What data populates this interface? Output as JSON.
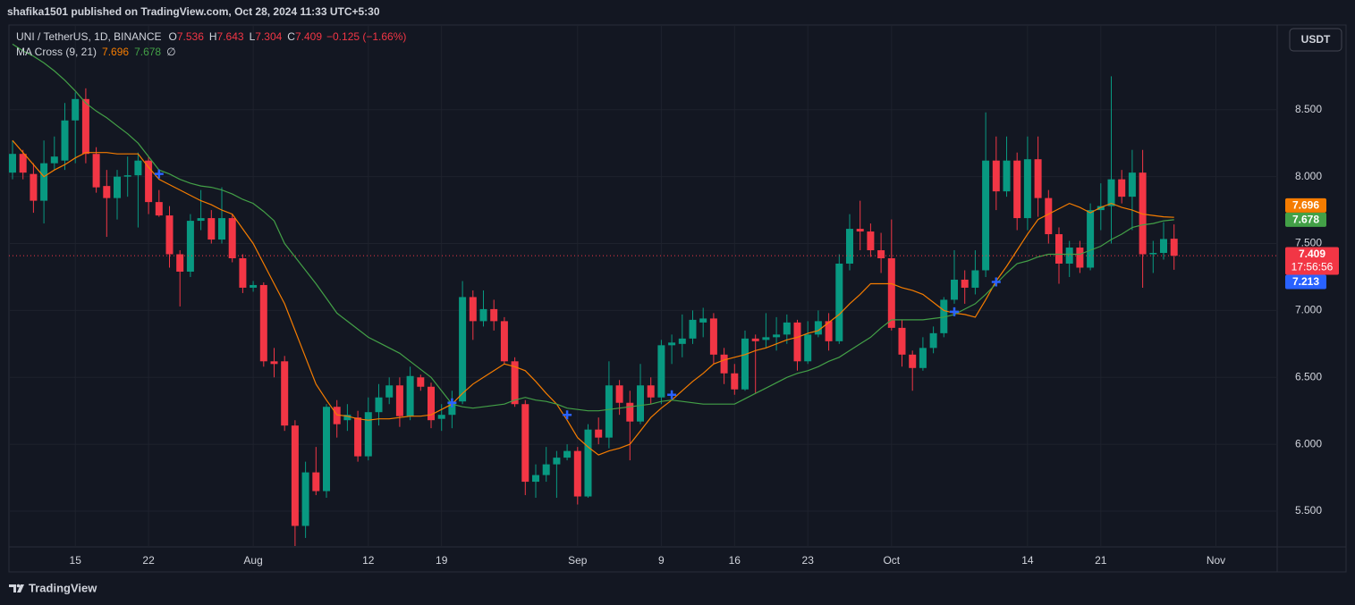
{
  "header": {
    "publisher": "shafika1501 published on TradingView.com, Oct 28, 2024 11:33 UTC+5:30",
    "currency": "USDT",
    "brand": "TradingView"
  },
  "chart_data": {
    "type": "candlestick",
    "title": "UNI / TetherUS, 1D, BINANCE",
    "ohlc_labels": [
      "O",
      "H",
      "L",
      "C"
    ],
    "change": "−0.125 (−1.66%)",
    "countdown": "17:56:56",
    "categories": [
      "Jul 9",
      "Jul 10",
      "Jul 11",
      "Jul 12",
      "Jul 13",
      "Jul 14",
      "Jul 15",
      "Jul 16",
      "Jul 17",
      "Jul 18",
      "Jul 19",
      "Jul 20",
      "Jul 21",
      "Jul 22",
      "Jul 23",
      "Jul 24",
      "Jul 25",
      "Jul 26",
      "Jul 27",
      "Jul 28",
      "Jul 29",
      "Jul 30",
      "Jul 31",
      "Aug 1",
      "Aug 2",
      "Aug 3",
      "Aug 4",
      "Aug 5",
      "Aug 6",
      "Aug 7",
      "Aug 8",
      "Aug 9",
      "Aug 10",
      "Aug 11",
      "Aug 12",
      "Aug 13",
      "Aug 14",
      "Aug 15",
      "Aug 16",
      "Aug 17",
      "Aug 18",
      "Aug 19",
      "Aug 20",
      "Aug 21",
      "Aug 22",
      "Aug 23",
      "Aug 24",
      "Aug 25",
      "Aug 26",
      "Aug 27",
      "Aug 28",
      "Aug 29",
      "Aug 30",
      "Aug 31",
      "Sep 1",
      "Sep 2",
      "Sep 3",
      "Sep 4",
      "Sep 5",
      "Sep 6",
      "Sep 7",
      "Sep 8",
      "Sep 9",
      "Sep 10",
      "Sep 11",
      "Sep 12",
      "Sep 13",
      "Sep 14",
      "Sep 15",
      "Sep 16",
      "Sep 17",
      "Sep 18",
      "Sep 19",
      "Sep 20",
      "Sep 21",
      "Sep 22",
      "Sep 23",
      "Sep 24",
      "Sep 25",
      "Sep 26",
      "Sep 27",
      "Sep 28",
      "Sep 29",
      "Sep 30",
      "Oct 1",
      "Oct 2",
      "Oct 3",
      "Oct 4",
      "Oct 5",
      "Oct 6",
      "Oct 7",
      "Oct 8",
      "Oct 9",
      "Oct 10",
      "Oct 11",
      "Oct 12",
      "Oct 13",
      "Oct 14",
      "Oct 15",
      "Oct 16",
      "Oct 17",
      "Oct 18",
      "Oct 19",
      "Oct 20",
      "Oct 21",
      "Oct 22",
      "Oct 23",
      "Oct 24",
      "Oct 25",
      "Oct 26",
      "Oct 27",
      "Oct 28"
    ],
    "open": [
      8.03,
      8.17,
      8.02,
      7.82,
      8.1,
      8.12,
      8.42,
      8.58,
      8.17,
      7.93,
      7.84,
      8.0,
      8.01,
      8.12,
      7.81,
      7.71,
      7.42,
      7.29,
      7.67,
      7.69,
      7.53,
      7.69,
      7.39,
      7.17,
      7.19,
      6.62,
      6.62,
      6.14,
      5.39,
      5.79,
      5.65,
      6.28,
      6.18,
      6.2,
      5.91,
      6.24,
      6.35,
      6.44,
      6.21,
      6.5,
      6.43,
      6.19,
      6.22,
      6.32,
      7.1,
      6.92,
      7.01,
      6.92,
      6.62,
      6.3,
      5.72,
      5.77,
      5.85,
      5.9,
      5.95,
      5.61,
      6.11,
      6.05,
      6.44,
      6.31,
      6.17,
      6.44,
      6.35,
      6.74,
      6.75,
      6.79,
      6.91,
      6.94,
      6.67,
      6.53,
      6.41,
      6.79,
      6.78,
      6.8,
      6.82,
      6.91,
      6.62,
      6.82,
      6.92,
      6.77,
      7.35,
      7.61,
      7.59,
      7.45,
      7.39,
      6.87,
      6.67,
      6.57,
      6.72,
      6.83,
      7.08,
      7.23,
      7.17,
      7.3,
      8.12,
      7.89,
      8.12,
      7.69,
      8.13,
      7.84,
      7.57,
      7.35,
      7.47,
      7.32,
      7.75,
      7.78,
      7.98,
      7.85,
      8.03,
      7.42,
      7.43,
      7.536
    ],
    "high": [
      8.27,
      8.2,
      8.1,
      8.27,
      8.3,
      8.55,
      8.63,
      8.66,
      8.22,
      8.05,
      8.05,
      8.15,
      8.18,
      8.15,
      7.9,
      7.78,
      7.45,
      7.72,
      7.9,
      7.75,
      7.92,
      7.72,
      7.42,
      7.22,
      7.21,
      6.72,
      6.66,
      6.18,
      5.87,
      5.98,
      6.3,
      6.33,
      6.3,
      6.25,
      6.35,
      6.45,
      6.5,
      6.5,
      6.58,
      6.52,
      6.46,
      6.3,
      6.4,
      7.22,
      7.15,
      7.15,
      7.08,
      6.95,
      6.65,
      6.33,
      5.85,
      5.98,
      5.95,
      6.0,
      5.98,
      6.15,
      6.2,
      6.62,
      6.48,
      6.4,
      6.6,
      6.5,
      6.78,
      6.82,
      6.97,
      7.0,
      7.02,
      6.98,
      6.72,
      6.6,
      6.85,
      6.82,
      6.98,
      6.95,
      6.97,
      6.93,
      6.92,
      7.0,
      6.98,
      7.42,
      7.72,
      7.82,
      7.65,
      7.58,
      7.68,
      6.93,
      6.7,
      6.8,
      6.88,
      7.1,
      7.45,
      7.3,
      7.45,
      8.48,
      8.3,
      8.3,
      8.18,
      8.3,
      8.3,
      7.9,
      7.62,
      7.52,
      7.52,
      7.8,
      7.95,
      8.75,
      8.05,
      8.2,
      8.2,
      7.52,
      7.66,
      7.643
    ],
    "low": [
      7.98,
      7.98,
      7.73,
      7.65,
      8.05,
      8.05,
      8.1,
      8.1,
      7.88,
      7.55,
      7.68,
      7.85,
      7.62,
      7.72,
      7.7,
      7.32,
      7.03,
      7.25,
      7.6,
      7.5,
      7.5,
      7.36,
      7.13,
      7.14,
      6.58,
      6.5,
      6.1,
      5.24,
      5.3,
      5.62,
      5.6,
      6.05,
      6.1,
      5.87,
      5.88,
      6.14,
      6.3,
      6.13,
      6.18,
      6.4,
      6.12,
      6.1,
      6.12,
      6.3,
      6.78,
      6.88,
      6.85,
      6.6,
      6.28,
      5.62,
      5.6,
      5.72,
      5.6,
      5.88,
      5.55,
      5.6,
      6.0,
      5.97,
      6.22,
      5.88,
      6.15,
      6.3,
      6.3,
      6.6,
      6.65,
      6.75,
      6.8,
      6.6,
      6.45,
      6.37,
      6.4,
      6.38,
      6.72,
      6.7,
      6.75,
      6.55,
      6.6,
      6.8,
      6.7,
      6.75,
      7.3,
      7.45,
      7.4,
      7.28,
      6.85,
      6.58,
      6.4,
      6.55,
      6.68,
      6.8,
      7.05,
      7.05,
      7.12,
      7.25,
      7.75,
      7.85,
      7.6,
      7.6,
      7.7,
      7.5,
      7.2,
      7.25,
      7.28,
      7.3,
      7.6,
      7.5,
      7.8,
      7.6,
      7.17,
      7.28,
      7.38,
      7.304
    ],
    "close": [
      8.17,
      8.03,
      7.82,
      8.1,
      8.15,
      8.42,
      8.58,
      8.17,
      7.92,
      7.84,
      8.0,
      8.01,
      8.12,
      7.81,
      7.71,
      7.42,
      7.29,
      7.67,
      7.69,
      7.53,
      7.69,
      7.39,
      7.17,
      7.19,
      6.62,
      6.6,
      6.14,
      5.39,
      5.79,
      5.65,
      6.28,
      6.15,
      6.22,
      5.91,
      6.24,
      6.35,
      6.44,
      6.21,
      6.51,
      6.43,
      6.18,
      6.22,
      6.32,
      7.1,
      6.92,
      7.01,
      6.92,
      6.62,
      6.3,
      5.72,
      5.77,
      5.85,
      5.9,
      5.95,
      5.61,
      6.11,
      6.05,
      6.44,
      6.31,
      6.17,
      6.44,
      6.35,
      6.74,
      6.76,
      6.79,
      6.93,
      6.94,
      6.67,
      6.53,
      6.41,
      6.79,
      6.77,
      6.8,
      6.82,
      6.91,
      6.62,
      6.82,
      6.92,
      6.77,
      7.35,
      7.61,
      7.59,
      7.45,
      7.39,
      6.87,
      6.67,
      6.57,
      6.72,
      6.83,
      7.08,
      7.23,
      7.17,
      7.3,
      8.12,
      7.89,
      8.12,
      7.69,
      8.13,
      7.84,
      7.57,
      7.35,
      7.47,
      7.32,
      7.75,
      7.78,
      7.98,
      7.85,
      8.03,
      7.42,
      7.43,
      7.534,
      7.409
    ],
    "up_color": "#089981",
    "down_color": "#f23645",
    "ylim": [
      5.233,
      9.133
    ],
    "yticks": [
      {
        "value": 5.5,
        "label": "5.500"
      },
      {
        "value": 6,
        "label": "6.000"
      },
      {
        "value": 6.5,
        "label": "6.500"
      },
      {
        "value": 7,
        "label": "7.000"
      },
      {
        "value": 7.5,
        "label": "7.500"
      },
      {
        "value": 8,
        "label": "8.000"
      },
      {
        "value": 8.5,
        "label": "8.500"
      }
    ],
    "xticks": [
      {
        "value": "Jul 15",
        "label": "15"
      },
      {
        "value": "Jul 22",
        "label": "22"
      },
      {
        "value": "Aug 1",
        "label": "Aug"
      },
      {
        "value": "Aug 12",
        "label": "12"
      },
      {
        "value": "Aug 19",
        "label": "19"
      },
      {
        "value": "Sep 1",
        "label": "Sep"
      },
      {
        "value": "Sep 9",
        "label": "9"
      },
      {
        "value": "Sep 16",
        "label": "16"
      },
      {
        "value": "Sep 23",
        "label": "23"
      },
      {
        "value": "Oct 1",
        "label": "Oct"
      },
      {
        "value": "Oct 14",
        "label": "14"
      },
      {
        "value": "Oct 21",
        "label": "21"
      },
      {
        "value": "Nov 1",
        "label": "Nov"
      }
    ],
    "grid": true,
    "indicator": {
      "name": "MA Cross (9, 21)",
      "symbol": "∅",
      "series": [
        {
          "color": "#f57c00",
          "values": [
            8.27,
            8.18,
            8.09,
            8.0,
            8.05,
            8.09,
            8.14,
            8.18,
            8.18,
            8.18,
            8.17,
            8.17,
            8.17,
            8.07,
            7.98,
            7.94,
            7.9,
            7.86,
            7.82,
            7.79,
            7.75,
            7.72,
            7.61,
            7.5,
            7.35,
            7.2,
            7.05,
            6.85,
            6.65,
            6.45,
            6.33,
            6.22,
            6.21,
            6.19,
            6.18,
            6.19,
            6.19,
            6.2,
            6.21,
            6.21,
            6.22,
            6.26,
            6.3,
            6.38,
            6.45,
            6.5,
            6.55,
            6.6,
            6.58,
            6.55,
            6.47,
            6.38,
            6.3,
            6.18,
            6.05,
            5.98,
            5.92,
            5.95,
            5.97,
            6.0,
            6.1,
            6.2,
            6.27,
            6.33,
            6.4,
            6.47,
            6.53,
            6.6,
            6.63,
            6.65,
            6.67,
            6.7,
            6.72,
            6.75,
            6.78,
            6.8,
            6.83,
            6.85,
            6.91,
            6.97,
            7.05,
            7.12,
            7.2,
            7.2,
            7.2,
            7.17,
            7.15,
            7.12,
            7.06,
            7.0,
            6.98,
            6.97,
            6.95,
            7.08,
            7.22,
            7.33,
            7.45,
            7.57,
            7.68,
            7.72,
            7.76,
            7.8,
            7.77,
            7.73,
            7.77,
            7.8,
            7.77,
            7.75,
            7.72,
            7.71,
            7.7,
            7.696
          ]
        },
        {
          "color": "#43a047",
          "values": [
            8.99,
            8.94,
            8.9,
            8.85,
            8.79,
            8.72,
            8.64,
            8.55,
            8.49,
            8.44,
            8.38,
            8.32,
            8.25,
            8.15,
            8.05,
            8.02,
            7.98,
            7.95,
            7.93,
            7.92,
            7.9,
            7.87,
            7.83,
            7.8,
            7.74,
            7.67,
            7.5,
            7.4,
            7.3,
            7.2,
            7.09,
            6.98,
            6.92,
            6.86,
            6.8,
            6.76,
            6.72,
            6.68,
            6.62,
            6.56,
            6.5,
            6.4,
            6.3,
            6.28,
            6.27,
            6.28,
            6.29,
            6.3,
            6.33,
            6.35,
            6.33,
            6.32,
            6.3,
            6.27,
            6.26,
            6.25,
            6.25,
            6.26,
            6.27,
            6.28,
            6.29,
            6.3,
            6.32,
            6.33,
            6.32,
            6.31,
            6.3,
            6.3,
            6.3,
            6.3,
            6.34,
            6.38,
            6.42,
            6.46,
            6.5,
            6.53,
            6.55,
            6.58,
            6.62,
            6.65,
            6.7,
            6.75,
            6.8,
            6.87,
            6.93,
            6.93,
            6.93,
            6.93,
            6.94,
            6.95,
            6.97,
            7.01,
            7.05,
            7.12,
            7.2,
            7.28,
            7.35,
            7.37,
            7.4,
            7.42,
            7.42,
            7.42,
            7.42,
            7.45,
            7.48,
            7.53,
            7.57,
            7.62,
            7.64,
            7.65,
            7.67,
            7.678
          ]
        }
      ],
      "crosses": {
        "color": "#2962ff",
        "x": [
          "Jul 23",
          "Aug 20",
          "Aug 31",
          "Sep 10",
          "Oct 7",
          "Oct 11"
        ],
        "values": [
          8.02,
          6.31,
          6.22,
          6.37,
          6.99,
          7.213
        ]
      }
    }
  }
}
